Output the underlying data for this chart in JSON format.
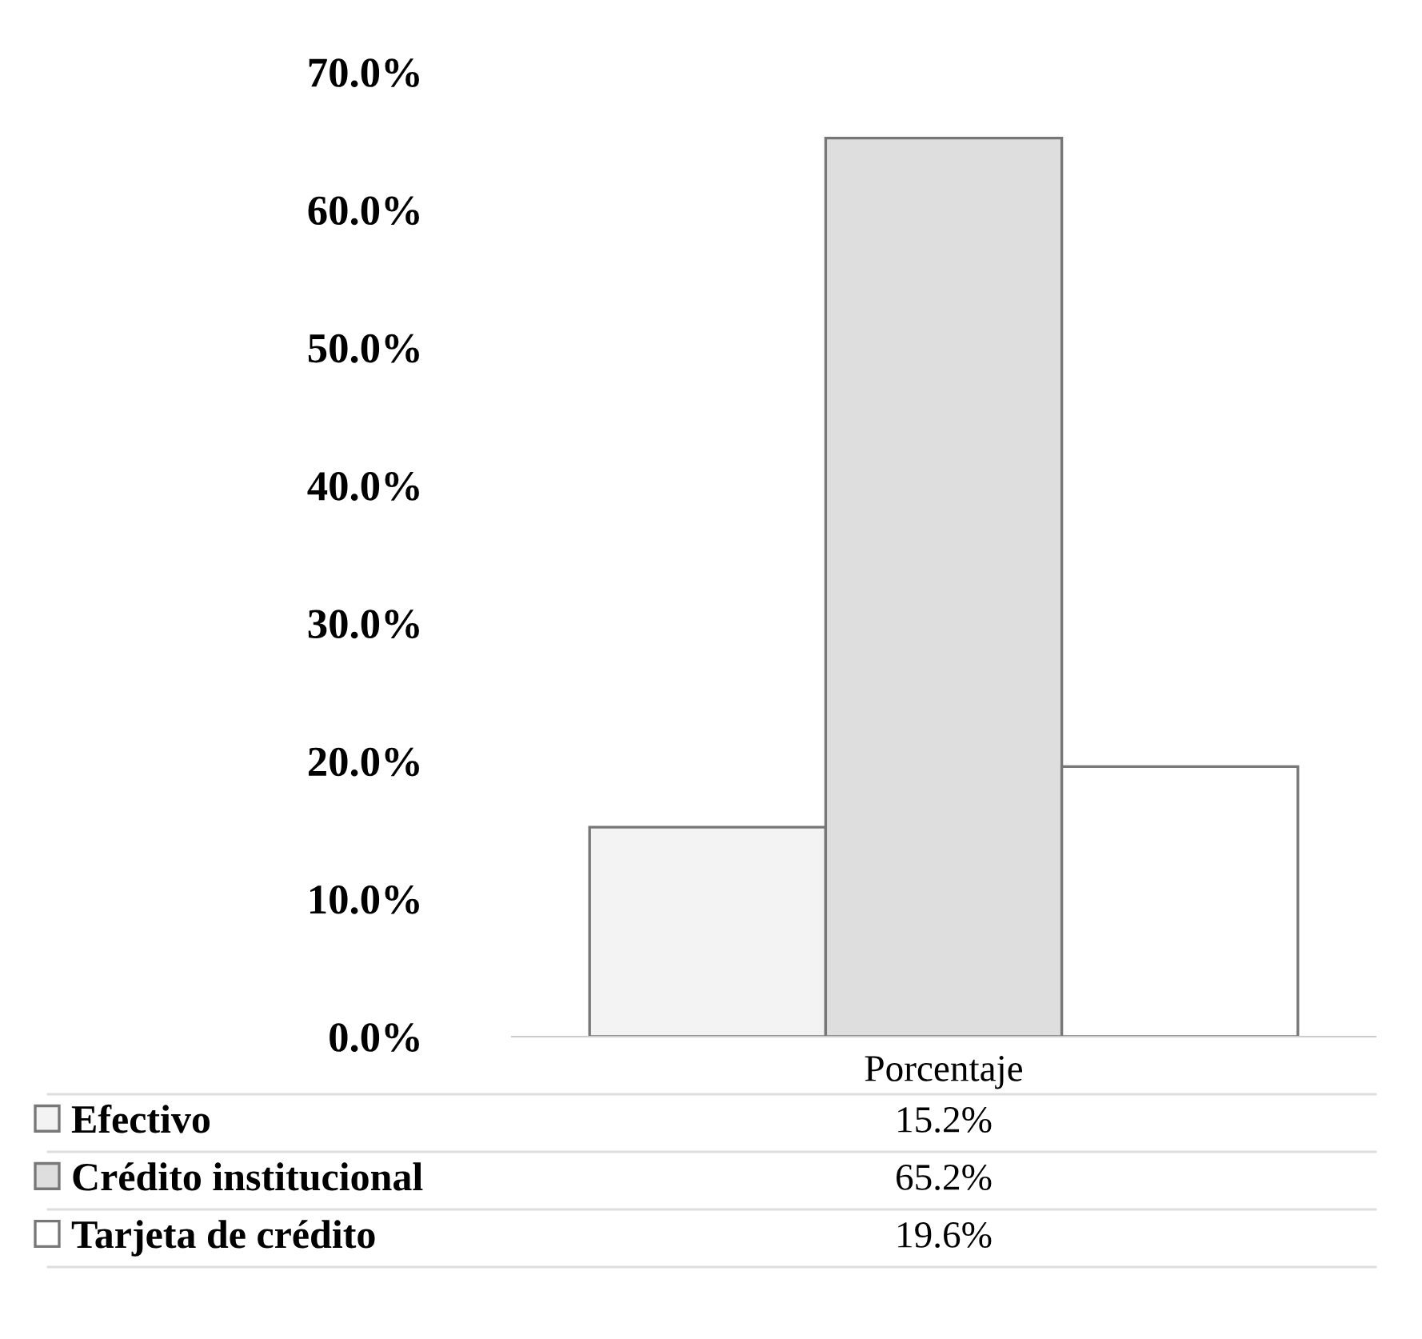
{
  "chart_data": {
    "type": "bar",
    "categories": [
      "Porcentaje"
    ],
    "series": [
      {
        "name": "Efectivo",
        "color": "#f3f3f3",
        "values": [
          15.2
        ]
      },
      {
        "name": "Crédito institucional",
        "color": "#dedede",
        "values": [
          65.2
        ]
      },
      {
        "name": "Tarjeta de crédito",
        "color": "#ffffff",
        "values": [
          19.6
        ]
      }
    ],
    "ylim": [
      0,
      70
    ],
    "yticks": [
      {
        "value": 0,
        "label": "0.0%"
      },
      {
        "value": 10,
        "label": "10.0%"
      },
      {
        "value": 20,
        "label": "20.0%"
      },
      {
        "value": 30,
        "label": "30.0%"
      },
      {
        "value": 40,
        "label": "40.0%"
      },
      {
        "value": 50,
        "label": "50.0%"
      },
      {
        "value": 60,
        "label": "60.0%"
      },
      {
        "value": 70,
        "label": "70.0%"
      }
    ],
    "value_labels": [
      [
        "15.2%"
      ],
      [
        "65.2%"
      ],
      [
        "19.6%"
      ]
    ],
    "grid": false,
    "legend": "bottom"
  }
}
